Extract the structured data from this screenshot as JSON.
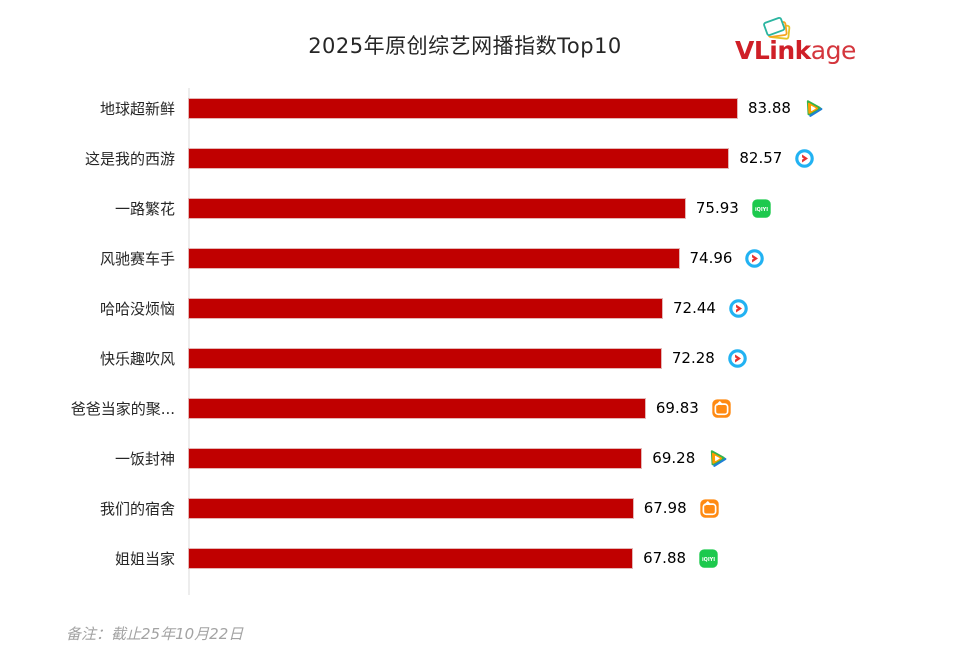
{
  "header": {
    "title": "2025年原创综艺网播指数Top10",
    "logo": {
      "text_bold": "VLink",
      "text_light": "age",
      "brand_color": "#cf1f27",
      "frame_colors": [
        "#2bb5a0",
        "#f6a41f",
        "#e5c426"
      ]
    }
  },
  "footer": {
    "note": "备注：截止25年10月22日"
  },
  "chart_data": {
    "type": "bar",
    "orientation": "horizontal",
    "title": "2025年原创综艺网播指数Top10",
    "xlabel": "",
    "ylabel": "",
    "xlim": [
      0,
      83.88
    ],
    "grid": false,
    "legend": false,
    "bar_color": "#c00000",
    "categories": [
      "地球超新鲜",
      "这是我的西游",
      "一路繁花",
      "风驰赛车手",
      "哈哈没烦恼",
      "快乐趣吹风",
      "爸爸当家的聚...",
      "一饭封神",
      "我们的宿舍",
      "姐姐当家"
    ],
    "values": [
      83.88,
      82.57,
      75.93,
      74.96,
      72.44,
      72.28,
      69.83,
      69.28,
      67.98,
      67.88
    ],
    "value_labels": [
      "83.88",
      "82.57",
      "75.93",
      "74.96",
      "72.44",
      "72.28",
      "69.83",
      "69.28",
      "67.98",
      "67.88"
    ],
    "platforms": [
      "腾讯视频",
      "优酷",
      "爱奇艺",
      "优酷",
      "优酷",
      "优酷",
      "芒果TV",
      "腾讯视频",
      "芒果TV",
      "爱奇艺"
    ],
    "platform_icons": [
      "tencent-video-icon",
      "youku-icon",
      "iqiyi-icon",
      "youku-icon",
      "youku-icon",
      "youku-icon",
      "mango-tv-icon",
      "tencent-video-icon",
      "mango-tv-icon",
      "iqiyi-icon"
    ]
  }
}
